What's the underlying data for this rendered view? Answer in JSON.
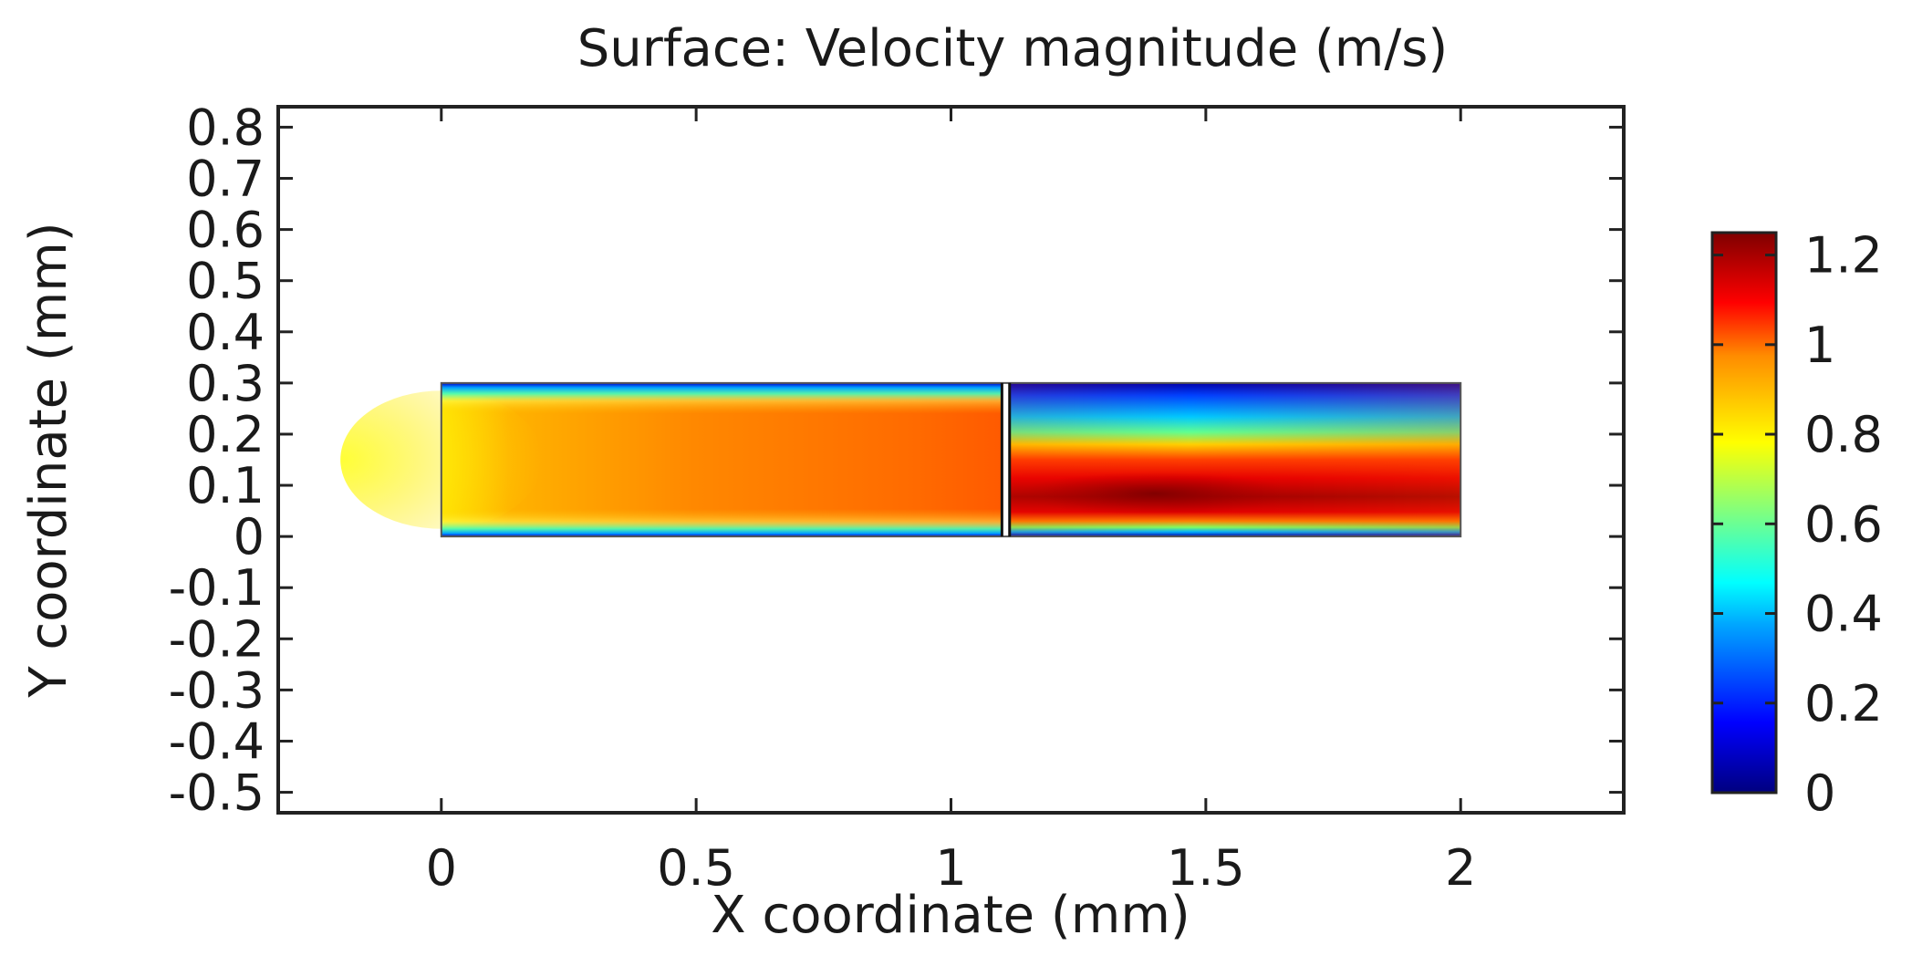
{
  "chart_data": {
    "type": "heatmap",
    "title": "Surface: Velocity magnitude (m/s)",
    "xlabel": "X coordinate (mm)",
    "ylabel": "Y coordinate (mm)",
    "xlim": [
      -0.32,
      2.32
    ],
    "ylim": [
      -0.54,
      0.84
    ],
    "x_ticks": [
      {
        "value": 0,
        "label": "0"
      },
      {
        "value": 0.5,
        "label": "0.5"
      },
      {
        "value": 1,
        "label": "1"
      },
      {
        "value": 1.5,
        "label": "1.5"
      },
      {
        "value": 2,
        "label": "2"
      }
    ],
    "y_ticks": [
      {
        "value": 0.8,
        "label": "0.8"
      },
      {
        "value": 0.7,
        "label": "0.7"
      },
      {
        "value": 0.6,
        "label": "0.6"
      },
      {
        "value": 0.5,
        "label": "0.5"
      },
      {
        "value": 0.4,
        "label": "0.4"
      },
      {
        "value": 0.3,
        "label": "0.3"
      },
      {
        "value": 0.2,
        "label": "0.2"
      },
      {
        "value": 0.1,
        "label": "0.1"
      },
      {
        "value": 0,
        "label": "0"
      },
      {
        "value": -0.1,
        "label": "-0.1"
      },
      {
        "value": -0.2,
        "label": "-0.2"
      },
      {
        "value": -0.3,
        "label": "-0.3"
      },
      {
        "value": -0.4,
        "label": "-0.4"
      },
      {
        "value": -0.5,
        "label": "-0.5"
      }
    ],
    "domain": {
      "x_min": 0,
      "x_max": 2,
      "y_min": 0,
      "y_max": 0.3
    },
    "interface_x": [
      1.1,
      1.115
    ],
    "colorbar": {
      "min": 0,
      "max": 1.25,
      "colormap": "rainbow",
      "ticks": [
        {
          "value": 0,
          "label": "0"
        },
        {
          "value": 0.2,
          "label": "0.2"
        },
        {
          "value": 0.4,
          "label": "0.4"
        },
        {
          "value": 0.6,
          "label": "0.6"
        },
        {
          "value": 0.8,
          "label": "0.8"
        },
        {
          "value": 1,
          "label": "1"
        },
        {
          "value": 1.2,
          "label": "1.2"
        }
      ]
    },
    "field_summary": {
      "inlet_velocity": 0.82,
      "first_section_core_velocity": 0.93,
      "second_section_peak_velocity": 1.25,
      "wall_velocity": 0
    }
  }
}
